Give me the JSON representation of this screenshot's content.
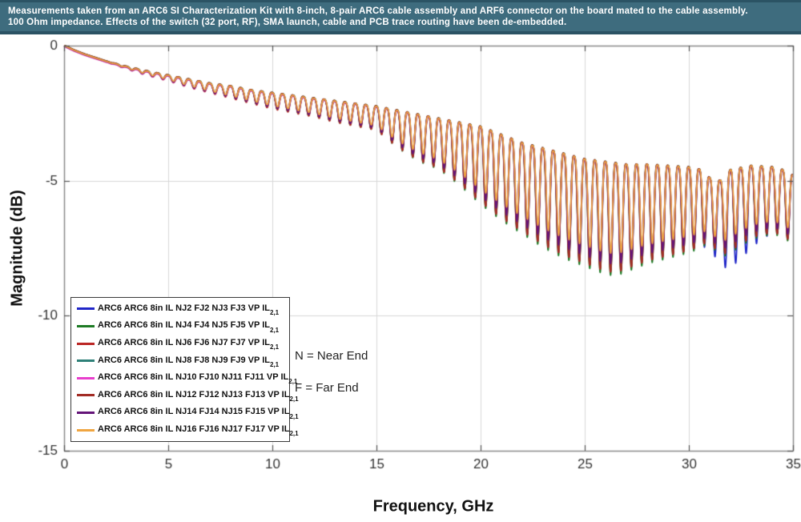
{
  "banner": {
    "line1": "Measurements taken from an ARC6 SI Characterization Kit with 8-inch, 8-pair ARC6 cable assembly and ARF6 connector on the board mated to the cable assembly.",
    "line2": "100 Ohm impedance. Effects of the switch (32 port, RF), SMA launch, cable and PCB trace routing have been de-embedded.",
    "background": "#3e6c7e",
    "accent": "#2b5364"
  },
  "annotations": {
    "near": "N = Near End",
    "far": "F = Far End"
  },
  "chart_data": {
    "type": "line",
    "xlabel": "Frequency, GHz",
    "ylabel": "Magnitude (dB)",
    "xlim": [
      0,
      35
    ],
    "ylim": [
      -15,
      0
    ],
    "xticks": [
      0,
      5,
      10,
      15,
      20,
      25,
      30,
      35
    ],
    "yticks": [
      0,
      -5,
      -10,
      -15
    ],
    "grid": true,
    "legend_position": "lower-left",
    "colors": {
      "grid": "#d8d8d8",
      "axis_border": "#8a8a8a",
      "tick": "#555555",
      "tick_label": "#333333"
    },
    "ripple": {
      "period_ghz": 0.5,
      "onset_ghz": 3.5,
      "shape_power": 1.7
    },
    "envelope": {
      "freq": [
        0,
        0.5,
        1,
        2,
        3,
        4,
        5,
        6,
        7,
        8,
        9,
        10,
        11,
        12,
        13,
        14,
        15,
        16,
        17,
        18,
        19,
        20,
        21,
        22,
        23,
        24,
        25,
        26,
        26.5,
        27,
        28,
        29,
        30,
        30.6,
        31,
        31.5,
        32,
        33,
        34,
        34.5,
        35
      ],
      "upper": [
        0,
        -0.18,
        -0.33,
        -0.58,
        -0.78,
        -0.95,
        -1.1,
        -1.25,
        -1.4,
        -1.5,
        -1.65,
        -1.75,
        -1.85,
        -1.95,
        -2.05,
        -2.15,
        -2.25,
        -2.4,
        -2.55,
        -2.7,
        -2.85,
        -3.0,
        -3.3,
        -3.6,
        -3.8,
        -4.0,
        -4.2,
        -4.3,
        -4.35,
        -4.4,
        -4.4,
        -4.45,
        -4.5,
        -4.6,
        -4.9,
        -5.0,
        -4.6,
        -4.45,
        -4.5,
        -4.6,
        -4.8
      ],
      "lower": [
        0,
        -0.18,
        -0.33,
        -0.58,
        -0.85,
        -1.1,
        -1.3,
        -1.55,
        -1.75,
        -1.95,
        -2.15,
        -2.35,
        -2.5,
        -2.65,
        -2.85,
        -3.0,
        -3.15,
        -3.8,
        -4.3,
        -4.6,
        -5.2,
        -5.9,
        -6.5,
        -7.0,
        -7.5,
        -7.9,
        -8.2,
        -8.5,
        -8.55,
        -8.4,
        -8.1,
        -7.9,
        -7.7,
        -7.5,
        -7.3,
        -7.9,
        -7.7,
        -7.2,
        -7.0,
        -7.1,
        -7.4
      ]
    },
    "series": [
      {
        "name": "ARC6 ARC6 8in IL NJ2 FJ2 NJ3 FJ3 VP IL",
        "sub": "2,1",
        "color": "#2026c8",
        "depth_scale": 0.92,
        "phase": 0.0,
        "offset": 0.0,
        "boost": {
          "center": 32.2,
          "sigma": 1.5,
          "gain": 0.24
        }
      },
      {
        "name": "ARC6 ARC6 8in IL NJ4 FJ4 NJ5 FJ5 VP IL",
        "sub": "2,1",
        "color": "#1d7a24",
        "depth_scale": 1.0,
        "phase": 0.12,
        "offset": 0.02
      },
      {
        "name": "ARC6 ARC6 8in IL NJ6 FJ6 NJ7 FJ7 VP IL",
        "sub": "2,1",
        "color": "#bb2725",
        "depth_scale": 0.96,
        "phase": 0.05,
        "offset": -0.02
      },
      {
        "name": "ARC6 ARC6 8in IL NJ8 FJ8 NJ9 FJ9 VP IL",
        "sub": "2,1",
        "color": "#2e8078",
        "depth_scale": 0.94,
        "phase": 0.18,
        "offset": 0.01
      },
      {
        "name": "ARC6 ARC6 8in IL NJ10 FJ10 NJ11 FJ11 VP IL",
        "sub": "2,1",
        "color": "#e83ecc",
        "depth_scale": 0.86,
        "phase": 0.08,
        "offset": -0.03
      },
      {
        "name": "ARC6 ARC6 8in IL NJ12 FJ12 NJ13 FJ13 VP IL",
        "sub": "2,1",
        "color": "#a22c25",
        "depth_scale": 0.97,
        "phase": 0.22,
        "offset": 0.02
      },
      {
        "name": "ARC6 ARC6 8in IL NJ14 FJ14 NJ15 FJ15 VP IL",
        "sub": "2,1",
        "color": "#641478",
        "depth_scale": 0.89,
        "phase": 0.1,
        "offset": -0.01
      },
      {
        "name": "ARC6 ARC6 8in IL NJ16 FJ16 NJ17 FJ17 VP IL",
        "sub": "2,1",
        "color": "#f0a540",
        "depth_scale": 0.8,
        "phase": 0.03,
        "offset": 0.0
      }
    ]
  }
}
